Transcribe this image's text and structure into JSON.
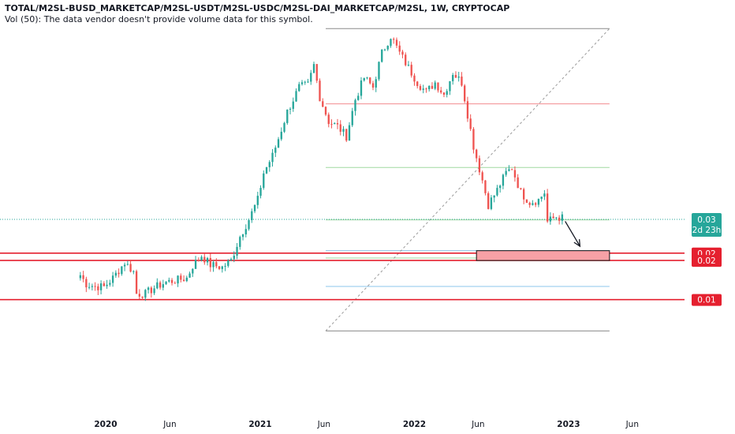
{
  "header": {
    "title": "TOTAL/M2SL-BUSD_MARKETCAP/M2SL-USDT/M2SL-USDC/M2SL-DAI_MARKETCAP/M2SL, 1W, CRYPTOCAP",
    "volume_note": "Vol (50): The data vendor doesn't provide volume data for this symbol."
  },
  "colors": {
    "up": "#26a69a",
    "down": "#ef5350",
    "level_line": "#e5202f",
    "box_fill": "#f7a1a6",
    "fib_red": "#f28b8f",
    "fib_green": "#9fd89f",
    "fib_blue": "#8ec7ec",
    "fib_gray": "#8a8a8a",
    "current_price": "#26a69a"
  },
  "chart_data": {
    "type": "candlestick",
    "timeframe": "1W",
    "x_ticks": [
      {
        "label": "2020",
        "date": "2020-01-01",
        "bold": true
      },
      {
        "label": "Jun",
        "date": "2020-06-01",
        "bold": false
      },
      {
        "label": "2021",
        "date": "2021-01-01",
        "bold": true
      },
      {
        "label": "Jun",
        "date": "2021-06-01",
        "bold": false
      },
      {
        "label": "2022",
        "date": "2022-01-01",
        "bold": true
      },
      {
        "label": "Jun",
        "date": "2022-06-01",
        "bold": false
      },
      {
        "label": "2023",
        "date": "2023-01-01",
        "bold": true
      },
      {
        "label": "Jun",
        "date": "2023-06-01",
        "bold": false
      }
    ],
    "current_price": {
      "value": "0.03",
      "countdown": "2d 23h",
      "level": 0.03
    },
    "horizontal_levels": [
      {
        "label": "0.02",
        "value": 0.0231
      },
      {
        "label": "0.02",
        "value": 0.0216
      },
      {
        "label": "0.01",
        "value": 0.0136
      }
    ],
    "target_box": {
      "date_start": "2022-05-28",
      "date_end": "2023-04-08",
      "top": 0.0236,
      "bottom": 0.0216
    },
    "arrow": {
      "from": {
        "date": "2022-12-24",
        "value": 0.0296
      },
      "to": {
        "date": "2023-01-28",
        "value": 0.0245
      }
    },
    "fib_extension": {
      "date_start": "2021-06-05",
      "date_end": "2023-04-08",
      "levels": [
        {
          "value": 0.069,
          "color_key": "fib_gray"
        },
        {
          "value": 0.0536,
          "color_key": "fib_red"
        },
        {
          "value": 0.0406,
          "color_key": "fib_green"
        },
        {
          "value": 0.0299,
          "color_key": "fib_green"
        },
        {
          "value": 0.0236,
          "color_key": "fib_blue"
        },
        {
          "value": 0.0221,
          "color_key": "fib_green"
        },
        {
          "value": 0.0163,
          "color_key": "fib_blue"
        },
        {
          "value": 0.0072,
          "color_key": "fib_gray"
        }
      ],
      "diagonal": {
        "from": {
          "date": "2021-06-05",
          "value": 0.0072
        },
        "to": {
          "date": "2023-04-08",
          "value": 0.069
        }
      }
    },
    "price_path": [
      [
        "2019-11-02",
        0.0186
      ],
      [
        "2019-11-16",
        0.0168
      ],
      [
        "2019-12-07",
        0.0163
      ],
      [
        "2019-12-28",
        0.0162
      ],
      [
        "2020-01-18",
        0.018
      ],
      [
        "2020-02-15",
        0.0212
      ],
      [
        "2020-03-07",
        0.0193
      ],
      [
        "2020-03-14",
        0.0148
      ],
      [
        "2020-04-04",
        0.0148
      ],
      [
        "2020-04-25",
        0.016
      ],
      [
        "2020-05-23",
        0.0172
      ],
      [
        "2020-06-13",
        0.0175
      ],
      [
        "2020-07-11",
        0.018
      ],
      [
        "2020-07-25",
        0.0205
      ],
      [
        "2020-08-15",
        0.0226
      ],
      [
        "2020-09-05",
        0.0207
      ],
      [
        "2020-10-03",
        0.0202
      ],
      [
        "2020-10-24",
        0.0216
      ],
      [
        "2020-11-14",
        0.0265
      ],
      [
        "2020-12-05",
        0.03
      ],
      [
        "2020-12-26",
        0.034
      ],
      [
        "2021-01-09",
        0.0395
      ],
      [
        "2021-01-30",
        0.043
      ],
      [
        "2021-02-13",
        0.0465
      ],
      [
        "2021-03-06",
        0.052
      ],
      [
        "2021-04-03",
        0.057
      ],
      [
        "2021-04-24",
        0.0575
      ],
      [
        "2021-05-08",
        0.0615
      ],
      [
        "2021-05-22",
        0.055
      ],
      [
        "2021-06-12",
        0.05
      ],
      [
        "2021-07-03",
        0.049
      ],
      [
        "2021-07-24",
        0.047
      ],
      [
        "2021-08-14",
        0.0545
      ],
      [
        "2021-09-04",
        0.059
      ],
      [
        "2021-09-25",
        0.057
      ],
      [
        "2021-10-16",
        0.064
      ],
      [
        "2021-11-06",
        0.0675
      ],
      [
        "2021-11-27",
        0.064
      ],
      [
        "2021-12-18",
        0.061
      ],
      [
        "2022-01-08",
        0.058
      ],
      [
        "2022-01-29",
        0.056
      ],
      [
        "2022-02-19",
        0.058
      ],
      [
        "2022-03-12",
        0.0555
      ],
      [
        "2022-04-02",
        0.06
      ],
      [
        "2022-04-23",
        0.058
      ],
      [
        "2022-05-07",
        0.0515
      ],
      [
        "2022-05-21",
        0.045
      ],
      [
        "2022-06-11",
        0.038
      ],
      [
        "2022-06-25",
        0.033
      ],
      [
        "2022-07-16",
        0.036
      ],
      [
        "2022-08-06",
        0.0395
      ],
      [
        "2022-08-20",
        0.0405
      ],
      [
        "2022-09-10",
        0.0355
      ],
      [
        "2022-10-01",
        0.0335
      ],
      [
        "2022-10-22",
        0.034
      ],
      [
        "2022-11-05",
        0.0355
      ],
      [
        "2022-11-12",
        0.0295
      ],
      [
        "2022-12-03",
        0.0305
      ],
      [
        "2022-12-17",
        0.0303
      ]
    ]
  }
}
